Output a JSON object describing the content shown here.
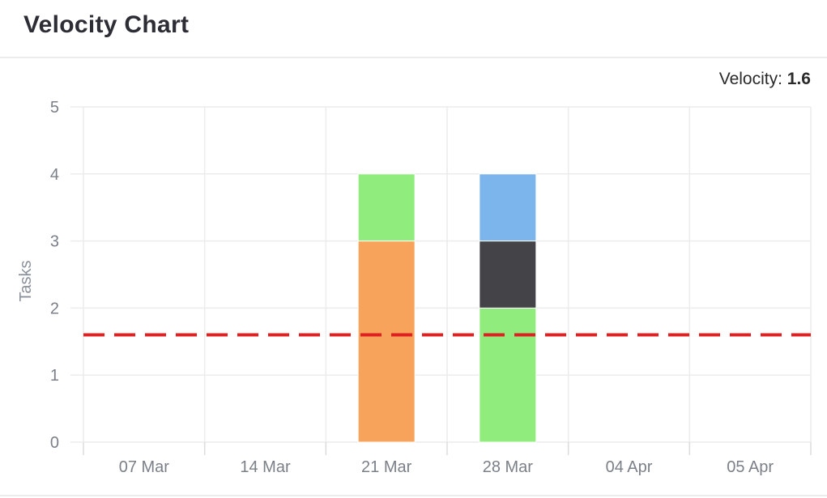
{
  "header": {
    "title": "Velocity Chart"
  },
  "velocity": {
    "label": "Velocity:",
    "value": "1.6"
  },
  "chart_data": {
    "type": "bar",
    "stacked": true,
    "title": "",
    "xlabel": "",
    "ylabel": "Tasks",
    "categories": [
      "07 Mar",
      "14 Mar",
      "21 Mar",
      "28 Mar",
      "04 Apr",
      "05 Apr"
    ],
    "ylim": [
      0,
      5
    ],
    "yticks": [
      0,
      1,
      2,
      3,
      4,
      5
    ],
    "grid": true,
    "series": [
      {
        "color": "#F7A35C",
        "values": [
          0,
          0,
          3,
          0,
          0,
          0
        ]
      },
      {
        "color": "#90ED7D",
        "values": [
          0,
          0,
          1,
          2,
          0,
          0
        ]
      },
      {
        "color": "#434348",
        "values": [
          0,
          0,
          0,
          1,
          0,
          0
        ]
      },
      {
        "color": "#7CB5EC",
        "values": [
          0,
          0,
          0,
          1,
          0,
          0
        ]
      }
    ],
    "reference_line": {
      "value": 1.6,
      "color": "#E02020",
      "style": "dashed"
    }
  }
}
